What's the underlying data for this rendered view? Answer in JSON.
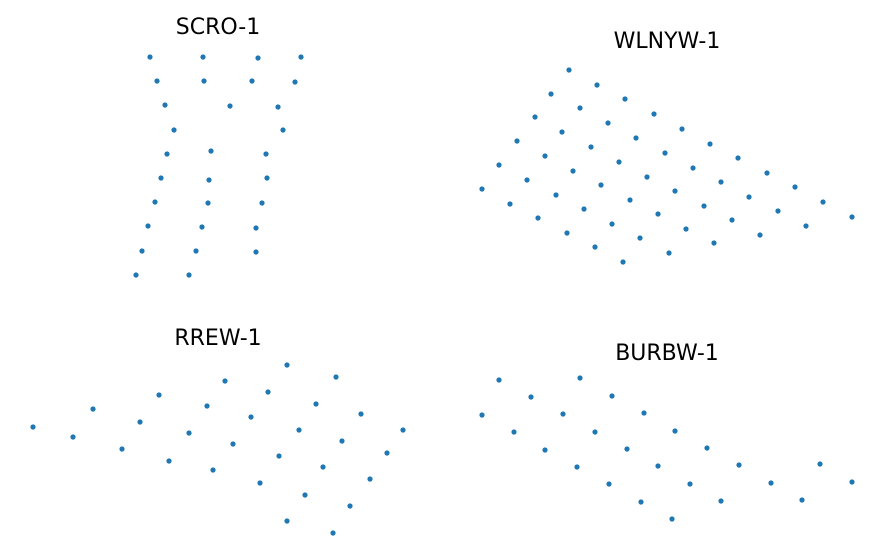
{
  "chart_data": [
    {
      "type": "scatter",
      "title": "SCRO-1",
      "axes_visible": false,
      "x": [
        150,
        203,
        258,
        301,
        157,
        204,
        252,
        295,
        165,
        230,
        278,
        174,
        283,
        167,
        211,
        266,
        161,
        209,
        267,
        155,
        208,
        262,
        148,
        202,
        256,
        142,
        196,
        256,
        136,
        189
      ],
      "y": [
        57,
        57,
        58,
        57,
        81,
        81,
        81,
        82,
        105,
        106,
        107,
        130,
        130,
        154,
        151,
        154,
        178,
        180,
        178,
        202,
        203,
        203,
        226,
        227,
        228,
        251,
        251,
        252,
        275,
        275
      ]
    },
    {
      "type": "scatter",
      "title": "WLNYW-1",
      "axes_visible": false,
      "x": [
        569,
        551,
        597,
        535,
        580,
        625,
        517,
        562,
        608,
        654,
        499,
        545,
        591,
        636,
        682,
        482,
        527,
        573,
        619,
        665,
        710,
        510,
        556,
        601,
        647,
        693,
        738,
        538,
        584,
        630,
        675,
        721,
        767,
        567,
        612,
        658,
        704,
        749,
        795,
        595,
        640,
        686,
        732,
        778,
        823,
        623,
        669,
        714,
        760,
        806,
        852
      ],
      "y": [
        70,
        94,
        85,
        117,
        108,
        99,
        141,
        132,
        123,
        114,
        165,
        156,
        147,
        138,
        129,
        189,
        180,
        171,
        162,
        153,
        144,
        204,
        195,
        185,
        177,
        168,
        158,
        218,
        209,
        200,
        191,
        182,
        173,
        233,
        224,
        214,
        206,
        197,
        187,
        247,
        238,
        229,
        220,
        211,
        202,
        262,
        253,
        243,
        235,
        226,
        217
      ]
    },
    {
      "type": "scatter",
      "title": "RREW-1",
      "axes_visible": false,
      "x": [
        33,
        93,
        73,
        159,
        140,
        122,
        225,
        207,
        189,
        169,
        287,
        268,
        251,
        233,
        213,
        336,
        316,
        299,
        279,
        260,
        361,
        342,
        323,
        305,
        287,
        403,
        387,
        370,
        350,
        333
      ],
      "y": [
        427,
        409,
        437,
        395,
        422,
        449,
        381,
        406,
        433,
        461,
        365,
        392,
        417,
        444,
        470,
        377,
        404,
        430,
        456,
        483,
        414,
        441,
        467,
        495,
        521,
        430,
        453,
        479,
        506,
        533
      ]
    },
    {
      "type": "scatter",
      "title": "BURBW-1",
      "axes_visible": false,
      "x": [
        499,
        482,
        531,
        514,
        580,
        563,
        545,
        612,
        595,
        577,
        644,
        627,
        609,
        675,
        658,
        641,
        707,
        690,
        672,
        739,
        721,
        771,
        820,
        802,
        852
      ],
      "y": [
        380,
        415,
        397,
        432,
        378,
        414,
        450,
        396,
        432,
        467,
        413,
        449,
        484,
        431,
        466,
        502,
        448,
        484,
        519,
        465,
        501,
        483,
        464,
        500,
        482
      ]
    }
  ]
}
